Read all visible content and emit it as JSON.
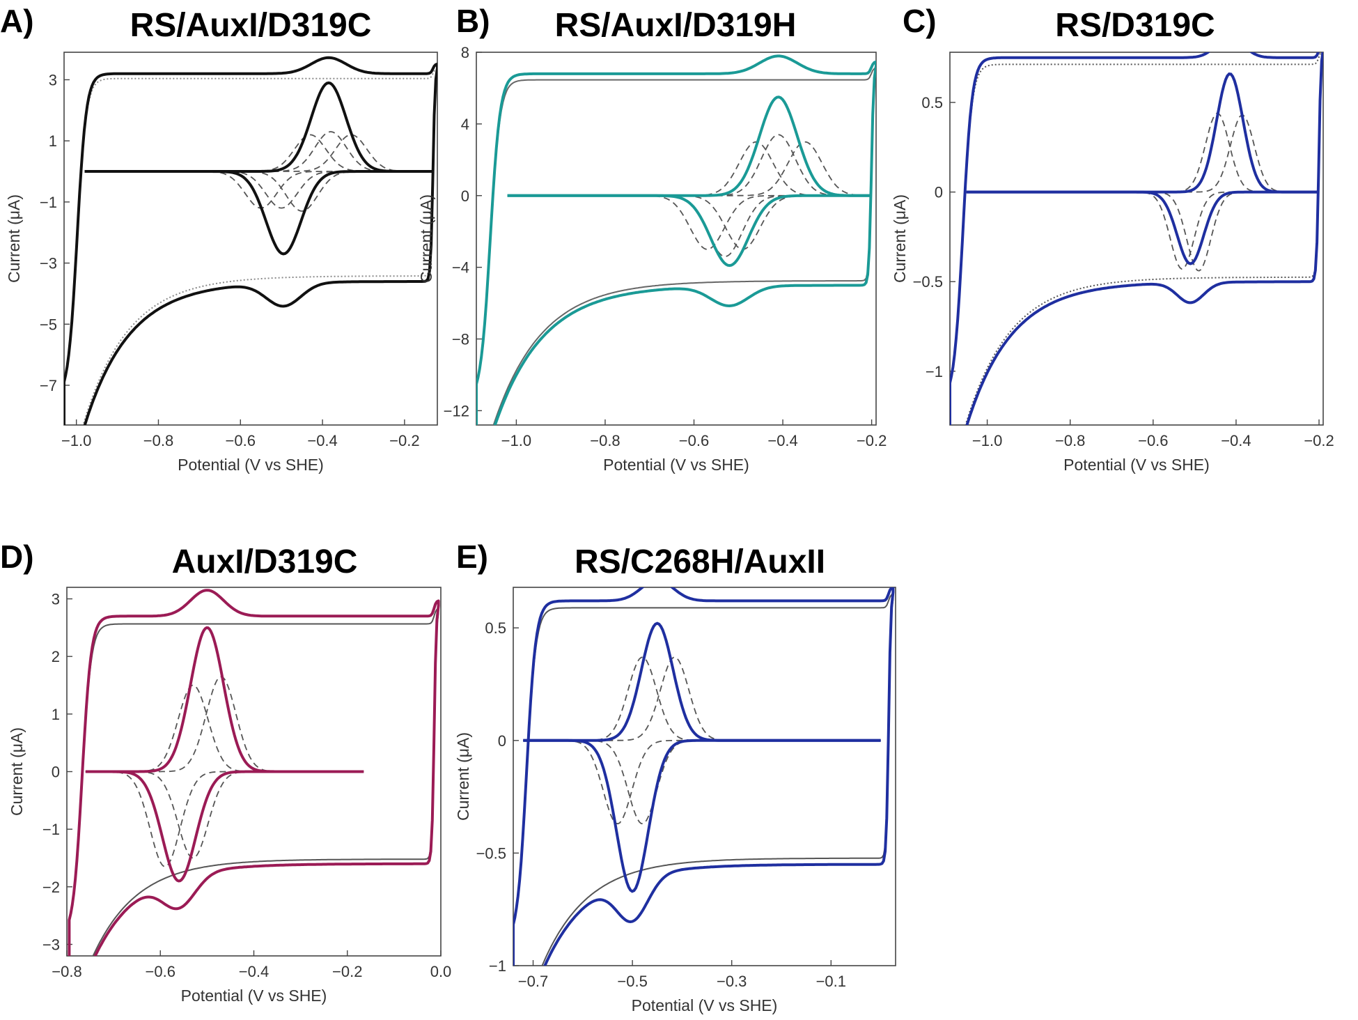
{
  "chart_data": [
    {
      "panel": "A)",
      "title": "RS/AuxI/D319C",
      "type": "line",
      "xlabel": "Potential (V vs SHE)",
      "ylabel": "Current (μA)",
      "xlim": [
        -1.03,
        -0.12
      ],
      "ylim": [
        -8.3,
        3.9
      ],
      "xticks": [
        -1.0,
        -0.8,
        -0.6,
        -0.4,
        -0.2
      ],
      "xtick_labels": [
        "−1.0",
        "−0.8",
        "−0.6",
        "−0.4",
        "−0.2"
      ],
      "yticks": [
        -7,
        -5,
        -3,
        -1,
        1,
        3
      ],
      "ytick_labels": [
        "−7",
        "−5",
        "−3",
        "−1",
        "1",
        "3"
      ],
      "raw_color": "#111111",
      "bg_color": "#8a8a8a",
      "bg_dotted": true,
      "raw_range": [
        -1.03,
        -0.12
      ],
      "raw_top": 3.2,
      "raw_bottom": -3.6,
      "sig_range": [
        -0.98,
        -0.13
      ],
      "peak_ox": {
        "E": -0.385,
        "I": 2.9,
        "w": 0.06
      },
      "peak_red": {
        "E": -0.495,
        "I": -2.7,
        "w": 0.06
      },
      "components": [
        {
          "Eox": -0.43,
          "Ered": -0.5,
          "amp": 1.2
        },
        {
          "Eox": -0.38,
          "Ered": -0.45,
          "amp": 1.3
        },
        {
          "Eox": -0.33,
          "Ered": -0.55,
          "amp": 1.2
        }
      ]
    },
    {
      "panel": "B)",
      "title": "RS/AuxI/D319H",
      "type": "line",
      "xlabel": "Potential (V vs SHE)",
      "ylabel": "Current (μA)",
      "xlim": [
        -1.09,
        -0.19
      ],
      "ylim": [
        -12.8,
        8.0
      ],
      "xticks": [
        -1.0,
        -0.8,
        -0.6,
        -0.4,
        -0.2
      ],
      "xtick_labels": [
        "−1.0",
        "−0.8",
        "−0.6",
        "−0.4",
        "−0.2"
      ],
      "yticks": [
        -12,
        -8,
        -4,
        0,
        4,
        8
      ],
      "ytick_labels": [
        "−12",
        "−8",
        "−4",
        "0",
        "4",
        "8"
      ],
      "raw_color": "#1a9a96",
      "bg_color": "#666666",
      "bg_dotted": false,
      "raw_range": [
        -1.09,
        -0.19
      ],
      "raw_top": 6.8,
      "raw_bottom": -5.0,
      "sig_range": [
        -1.02,
        -0.2
      ],
      "peak_ox": {
        "E": -0.41,
        "I": 5.5,
        "w": 0.06
      },
      "peak_red": {
        "E": -0.52,
        "I": -3.9,
        "w": 0.06
      },
      "components": [
        {
          "Eox": -0.46,
          "Ered": -0.49,
          "amp": 3.0
        },
        {
          "Eox": -0.41,
          "Ered": -0.53,
          "amp": 3.4
        },
        {
          "Eox": -0.35,
          "Ered": -0.57,
          "amp": 3.0
        }
      ]
    },
    {
      "panel": "C)",
      "title": "RS/D319C",
      "type": "line",
      "xlabel": "Potential (V vs SHE)",
      "ylabel": "Current (μA)",
      "xlim": [
        -1.09,
        -0.19
      ],
      "ylim": [
        -1.3,
        0.78
      ],
      "xticks": [
        -1.0,
        -0.8,
        -0.6,
        -0.4,
        -0.2
      ],
      "xtick_labels": [
        "−1.0",
        "−0.8",
        "−0.6",
        "−0.4",
        "−0.2"
      ],
      "yticks": [
        -1,
        -0.5,
        0,
        0.5
      ],
      "ytick_labels": [
        "−1",
        "−0.5",
        "0",
        "0.5"
      ],
      "raw_color": "#1f2fa0",
      "bg_color": "#555555",
      "bg_dotted": true,
      "raw_range": [
        -1.09,
        -0.19
      ],
      "raw_top": 0.75,
      "raw_bottom": -0.5,
      "sig_range": [
        -1.05,
        -0.2
      ],
      "peak_ox": {
        "E": -0.415,
        "I": 0.66,
        "w": 0.045
      },
      "peak_red": {
        "E": -0.51,
        "I": -0.4,
        "w": 0.045
      },
      "components": [
        {
          "Eox": -0.445,
          "Ered": -0.49,
          "amp": 0.44
        },
        {
          "Eox": -0.385,
          "Ered": -0.53,
          "amp": 0.43
        }
      ]
    },
    {
      "panel": "D)",
      "title": "AuxI/D319C",
      "type": "line",
      "xlabel": "Potential (V vs SHE)",
      "ylabel": "Current (μA)",
      "xlim": [
        -0.8,
        0.0
      ],
      "ylim": [
        -3.2,
        3.2
      ],
      "xticks": [
        -0.8,
        -0.6,
        -0.4,
        -0.2,
        0.0
      ],
      "xtick_labels": [
        "−0.8",
        "−0.6",
        "−0.4",
        "−0.2",
        "0.0"
      ],
      "yticks": [
        -3,
        -2,
        -1,
        0,
        1,
        2,
        3
      ],
      "ytick_labels": [
        "−3",
        "−2",
        "−1",
        "0",
        "1",
        "2",
        "3"
      ],
      "raw_color": "#9b1b55",
      "bg_color": "#555555",
      "bg_dotted": false,
      "raw_range": [
        -0.795,
        -0.005
      ],
      "raw_top": 2.7,
      "raw_bottom": -1.6,
      "sig_range": [
        -0.76,
        -0.165
      ],
      "peak_ox": {
        "E": -0.5,
        "I": 2.5,
        "w": 0.05
      },
      "peak_red": {
        "E": -0.56,
        "I": -1.9,
        "w": 0.05
      },
      "components": [
        {
          "Eox": -0.53,
          "Ered": -0.53,
          "amp": 1.5
        },
        {
          "Eox": -0.47,
          "Ered": -0.59,
          "amp": 1.65
        }
      ]
    },
    {
      "panel": "E)",
      "title": "RS/C268H/AuxII",
      "type": "line",
      "xlabel": "Potential (V vs SHE)",
      "ylabel": "Current (μA)",
      "xlim": [
        -0.74,
        0.03
      ],
      "ylim": [
        -1.0,
        0.68
      ],
      "xticks": [
        -0.7,
        -0.5,
        -0.3,
        -0.1
      ],
      "xtick_labels": [
        "−0.7",
        "−0.5",
        "−0.3",
        "−0.1"
      ],
      "yticks": [
        -1,
        -0.5,
        0,
        0.5
      ],
      "ytick_labels": [
        "−1",
        "−0.5",
        "0",
        "0.5"
      ],
      "raw_color": "#1f2fa0",
      "bg_color": "#555555",
      "bg_dotted": false,
      "raw_range": [
        -0.74,
        0.025
      ],
      "raw_top": 0.62,
      "raw_bottom": -0.55,
      "sig_range": [
        -0.72,
        0.0
      ],
      "peak_ox": {
        "E": -0.45,
        "I": 0.52,
        "w": 0.045
      },
      "peak_red": {
        "E": -0.5,
        "I": -0.67,
        "w": 0.045
      },
      "components": [
        {
          "Eox": -0.48,
          "Ered": -0.48,
          "amp": 0.37
        },
        {
          "Eox": -0.415,
          "Ered": -0.53,
          "amp": 0.37
        }
      ]
    }
  ]
}
